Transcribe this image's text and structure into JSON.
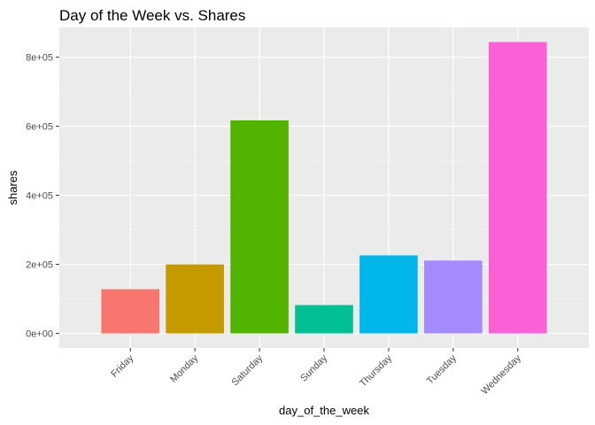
{
  "chart_data": {
    "type": "bar",
    "title": "Day of the Week vs. Shares",
    "xlabel": "day_of_the_week",
    "ylabel": "shares",
    "categories": [
      "Friday",
      "Monday",
      "Saturday",
      "Sunday",
      "Thursday",
      "Tuesday",
      "Wednesday"
    ],
    "values": [
      128000,
      200000,
      617000,
      82000,
      226000,
      211000,
      844000
    ],
    "colors": [
      "#F8766D",
      "#C49A00",
      "#53B400",
      "#00C094",
      "#00B6EB",
      "#A58AFF",
      "#FB61D7"
    ],
    "ylim": [
      -42200,
      886200
    ],
    "yticks": [
      0,
      200000,
      400000,
      600000,
      800000
    ],
    "ytick_labels": [
      "0e+00",
      "2e+05",
      "4e+05",
      "6e+05",
      "8e+05"
    ],
    "grid": true,
    "legend": "none"
  }
}
